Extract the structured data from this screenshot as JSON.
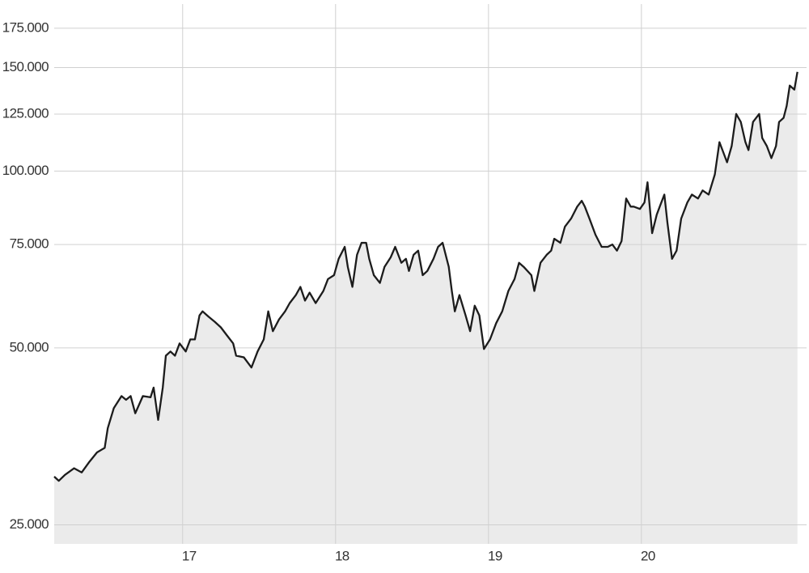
{
  "chart_data": {
    "type": "line",
    "log_y": true,
    "grid": true,
    "color": "#1c1c1c",
    "fill_color": "#ebebeb",
    "xlim": [
      2016.16,
      2021.08
    ],
    "ylim": [
      23200,
      195500
    ],
    "xticks": [
      {
        "value": 2017,
        "label": "17"
      },
      {
        "value": 2018,
        "label": "18"
      },
      {
        "value": 2019,
        "label": "19"
      },
      {
        "value": 2020,
        "label": "20"
      }
    ],
    "yticks": [
      {
        "value": 25000,
        "label": "25.000"
      },
      {
        "value": 50000,
        "label": "50.000"
      },
      {
        "value": 75000,
        "label": "75.000"
      },
      {
        "value": 100000,
        "label": "100.000"
      },
      {
        "value": 125000,
        "label": "125.000"
      },
      {
        "value": 150000,
        "label": "150.000"
      },
      {
        "value": 175000,
        "label": "175.000"
      }
    ],
    "x": [
      2016.16,
      2016.19,
      2016.23,
      2016.29,
      2016.34,
      2016.39,
      2016.44,
      2016.49,
      2016.51,
      2016.55,
      2016.6,
      2016.63,
      2016.66,
      2016.69,
      2016.74,
      2016.79,
      2016.81,
      2016.84,
      2016.87,
      2016.89,
      2016.92,
      2016.95,
      2016.98,
      2017.02,
      2017.05,
      2017.08,
      2017.11,
      2017.13,
      2017.17,
      2017.21,
      2017.25,
      2017.29,
      2017.33,
      2017.35,
      2017.4,
      2017.45,
      2017.49,
      2017.53,
      2017.56,
      2017.59,
      2017.63,
      2017.67,
      2017.7,
      2017.74,
      2017.77,
      2017.8,
      2017.83,
      2017.87,
      2017.92,
      2017.95,
      2017.99,
      2018.02,
      2018.06,
      2018.08,
      2018.11,
      2018.14,
      2018.17,
      2018.2,
      2018.22,
      2018.25,
      2018.29,
      2018.32,
      2018.36,
      2018.39,
      2018.43,
      2018.46,
      2018.48,
      2018.51,
      2018.54,
      2018.57,
      2018.6,
      2018.64,
      2018.67,
      2018.7,
      2018.74,
      2018.76,
      2018.78,
      2018.81,
      2018.85,
      2018.88,
      2018.91,
      2018.94,
      2018.97,
      2019.01,
      2019.05,
      2019.09,
      2019.13,
      2019.17,
      2019.2,
      2019.23,
      2019.28,
      2019.3,
      2019.34,
      2019.38,
      2019.41,
      2019.43,
      2019.47,
      2019.5,
      2019.54,
      2019.58,
      2019.61,
      2019.63,
      2019.66,
      2019.7,
      2019.74,
      2019.78,
      2019.81,
      2019.84,
      2019.87,
      2019.9,
      2019.93,
      2019.95,
      2019.99,
      2020.02,
      2020.04,
      2020.07,
      2020.1,
      2020.12,
      2020.15,
      2020.17,
      2020.2,
      2020.23,
      2020.26,
      2020.3,
      2020.33,
      2020.37,
      2020.4,
      2020.44,
      2020.48,
      2020.51,
      2020.53,
      2020.56,
      2020.59,
      2020.62,
      2020.65,
      2020.68,
      2020.7,
      2020.73,
      2020.77,
      2020.79,
      2020.82,
      2020.85,
      2020.88,
      2020.9,
      2020.93,
      2020.95,
      2020.97,
      2021.0,
      2021.02
    ],
    "values": [
      30200,
      29700,
      30400,
      31200,
      30700,
      32000,
      33200,
      33800,
      36500,
      39500,
      41400,
      40800,
      41400,
      38700,
      41400,
      41200,
      42800,
      37700,
      42800,
      48500,
      49300,
      48500,
      50900,
      49300,
      51700,
      51700,
      56800,
      57700,
      56500,
      55400,
      54200,
      52500,
      50900,
      48500,
      48200,
      46300,
      49300,
      51700,
      57700,
      53400,
      55900,
      57700,
      59600,
      61500,
      63500,
      60200,
      62100,
      59600,
      62500,
      65500,
      66500,
      70900,
      74300,
      68700,
      63500,
      72000,
      75500,
      75500,
      70900,
      66500,
      64500,
      68700,
      71300,
      74300,
      69800,
      70900,
      67600,
      72000,
      73200,
      66500,
      67600,
      70900,
      74300,
      75500,
      68700,
      62500,
      57700,
      61500,
      56800,
      53400,
      59000,
      56800,
      49800,
      51700,
      55100,
      57700,
      62500,
      65500,
      69800,
      68700,
      66500,
      62500,
      69800,
      72000,
      73200,
      76700,
      75500,
      80400,
      83000,
      87000,
      89000,
      87000,
      83000,
      77900,
      74300,
      74300,
      75000,
      73200,
      76000,
      89800,
      87000,
      87000,
      86200,
      88400,
      95700,
      78400,
      84300,
      87000,
      91200,
      81700,
      70900,
      73200,
      83000,
      88400,
      91200,
      89800,
      92700,
      91200,
      98700,
      112000,
      108600,
      103500,
      110300,
      125100,
      121200,
      112000,
      108600,
      121200,
      125100,
      113800,
      110300,
      105200,
      110300,
      121200,
      123200,
      129100,
      139800,
      137600,
      147500
    ]
  }
}
